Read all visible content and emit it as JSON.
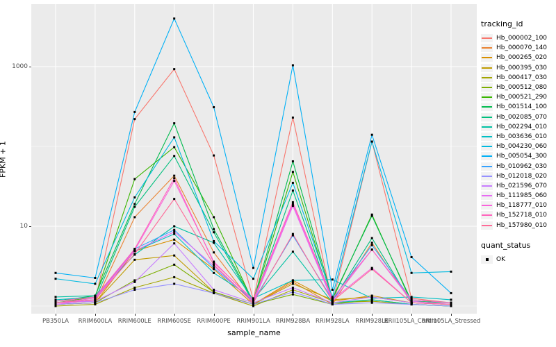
{
  "figure": {
    "background": "#FFFFFF",
    "panel_background": "#EBEBEB",
    "gridline_color": "#FFFFFF",
    "tick_label_color": "#4D4D4D",
    "point_color": "#000000"
  },
  "y_axis": {
    "title": "FPKM + 1",
    "scale": "log10",
    "major_ticks": [
      {
        "label": "1000",
        "value": 1000
      },
      {
        "label": "10",
        "value": 10
      }
    ],
    "minor_grid_values": [
      1,
      100,
      10000
    ]
  },
  "x_axis": {
    "title": "sample_name"
  },
  "legend": {
    "tracking_title": "tracking_id",
    "quant_title": "quant_status",
    "quant_items": [
      {
        "label": "OK",
        "marker": "black-square"
      }
    ]
  },
  "chart_data": {
    "type": "line",
    "title": "",
    "xlabel": "sample_name",
    "ylabel": "FPKM + 1",
    "y_scale": "log10",
    "ylim": [
      1,
      5000
    ],
    "grid": true,
    "legend_position": "right",
    "point_marker": "small black square (quant_status OK)",
    "categories": [
      "PB350LA",
      "RRIM600LA",
      "RRIM600LE",
      "RRIM600SE",
      "RRIM600PE",
      "RRIM901LA",
      "RRIM928BA",
      "RRIM928LA",
      "RRIM928LE",
      "RRII105LA_Control",
      "RRII105LA_Stressed"
    ],
    "series": [
      {
        "name": "Hb_000002_100",
        "color": "#F8766D",
        "values": [
          1.1,
          1.15,
          220,
          930,
          77,
          1.2,
          230,
          1.1,
          115,
          1.25,
          1.1
        ]
      },
      {
        "name": "Hb_000070_140",
        "color": "#EA8331",
        "values": [
          1.05,
          1.1,
          13,
          43,
          4.7,
          1.05,
          2.0,
          1.05,
          6.2,
          1.1,
          1.05
        ]
      },
      {
        "name": "Hb_000265_020",
        "color": "#D89000",
        "values": [
          1.05,
          1.1,
          4.9,
          6.8,
          2.9,
          1.05,
          2.1,
          1.15,
          1.35,
          1.1,
          1.05
        ]
      },
      {
        "name": "Hb_000395_030",
        "color": "#C09B00",
        "values": [
          1.05,
          1.1,
          3.8,
          4.3,
          1.5,
          1.05,
          1.9,
          1.2,
          1.3,
          1.1,
          1.05
        ]
      },
      {
        "name": "Hb_000417_030",
        "color": "#A3A500",
        "values": [
          1.0,
          1.05,
          1.7,
          2.3,
          1.45,
          1.0,
          1.6,
          1.1,
          1.15,
          1.05,
          1.0
        ]
      },
      {
        "name": "Hb_000512_080",
        "color": "#7CAE00",
        "values": [
          1.05,
          1.1,
          2.1,
          3.3,
          1.5,
          1.05,
          1.4,
          1.05,
          1.2,
          1.05,
          1.0
        ]
      },
      {
        "name": "Hb_000521_290",
        "color": "#39B600",
        "values": [
          1.1,
          1.3,
          39,
          98,
          13,
          1.1,
          48,
          1.2,
          14,
          1.1,
          1.05
        ]
      },
      {
        "name": "Hb_001514_100",
        "color": "#00BB4E",
        "values": [
          1.15,
          1.35,
          19,
          195,
          9.2,
          1.15,
          65,
          1.25,
          13.5,
          1.15,
          1.1
        ]
      },
      {
        "name": "Hb_002085_070",
        "color": "#00BF7D",
        "values": [
          1.1,
          1.2,
          17.5,
          76,
          8.4,
          1.1,
          28,
          1.15,
          7.1,
          1.1,
          1.05
        ]
      },
      {
        "name": "Hb_002294_010",
        "color": "#00C1A3",
        "values": [
          1.3,
          1.35,
          4.4,
          10,
          6.2,
          1.2,
          4.8,
          1.1,
          1.2,
          1.05,
          1.0
        ]
      },
      {
        "name": "Hb_003636_010",
        "color": "#00BFC4",
        "values": [
          1.2,
          1.3,
          4.9,
          8.0,
          2.6,
          1.25,
          2.1,
          2.15,
          1.25,
          1.3,
          1.2
        ]
      },
      {
        "name": "Hb_004230_060",
        "color": "#00BAE0",
        "values": [
          2.2,
          1.9,
          23,
          130,
          6.5,
          2.2,
          35,
          1.3,
          115,
          2.6,
          2.7
        ]
      },
      {
        "name": "Hb_005054_300",
        "color": "#00B0F6",
        "values": [
          2.6,
          2.25,
          270,
          4000,
          310,
          3.0,
          1040,
          1.6,
          140,
          4.1,
          1.45
        ]
      },
      {
        "name": "Hb_010962_030",
        "color": "#35A2FF",
        "values": [
          1.1,
          1.2,
          5.2,
          9.0,
          3.0,
          1.15,
          7.7,
          1.2,
          5.8,
          1.2,
          1.1
        ]
      },
      {
        "name": "Hb_012018_020",
        "color": "#9590FF",
        "values": [
          1.05,
          1.1,
          1.6,
          1.9,
          1.45,
          1.05,
          1.5,
          1.05,
          1.1,
          1.05,
          1.0
        ]
      },
      {
        "name": "Hb_021596_070",
        "color": "#C77CFF",
        "values": [
          1.1,
          1.15,
          2.0,
          6.1,
          1.6,
          1.1,
          1.7,
          1.1,
          1.3,
          1.1,
          1.05
        ]
      },
      {
        "name": "Hb_111985_060",
        "color": "#E76BF3",
        "values": [
          1.05,
          1.2,
          4.9,
          8.5,
          3.2,
          1.1,
          18,
          1.15,
          5.1,
          1.15,
          1.05
        ]
      },
      {
        "name": "Hb_118777_010",
        "color": "#FA62DB",
        "values": [
          1.1,
          1.25,
          5.0,
          37,
          3.6,
          1.15,
          19,
          1.2,
          3.0,
          1.1,
          1.05
        ]
      },
      {
        "name": "Hb_152718_010",
        "color": "#FF62BC",
        "values": [
          1.15,
          1.3,
          5.2,
          40,
          3.5,
          1.2,
          20,
          1.25,
          5.1,
          1.2,
          1.1
        ]
      },
      {
        "name": "Hb_157980_010",
        "color": "#FF6A98",
        "values": [
          1.1,
          1.2,
          4.5,
          22,
          3.3,
          1.1,
          8.0,
          1.15,
          2.9,
          1.1,
          1.05
        ]
      }
    ]
  }
}
